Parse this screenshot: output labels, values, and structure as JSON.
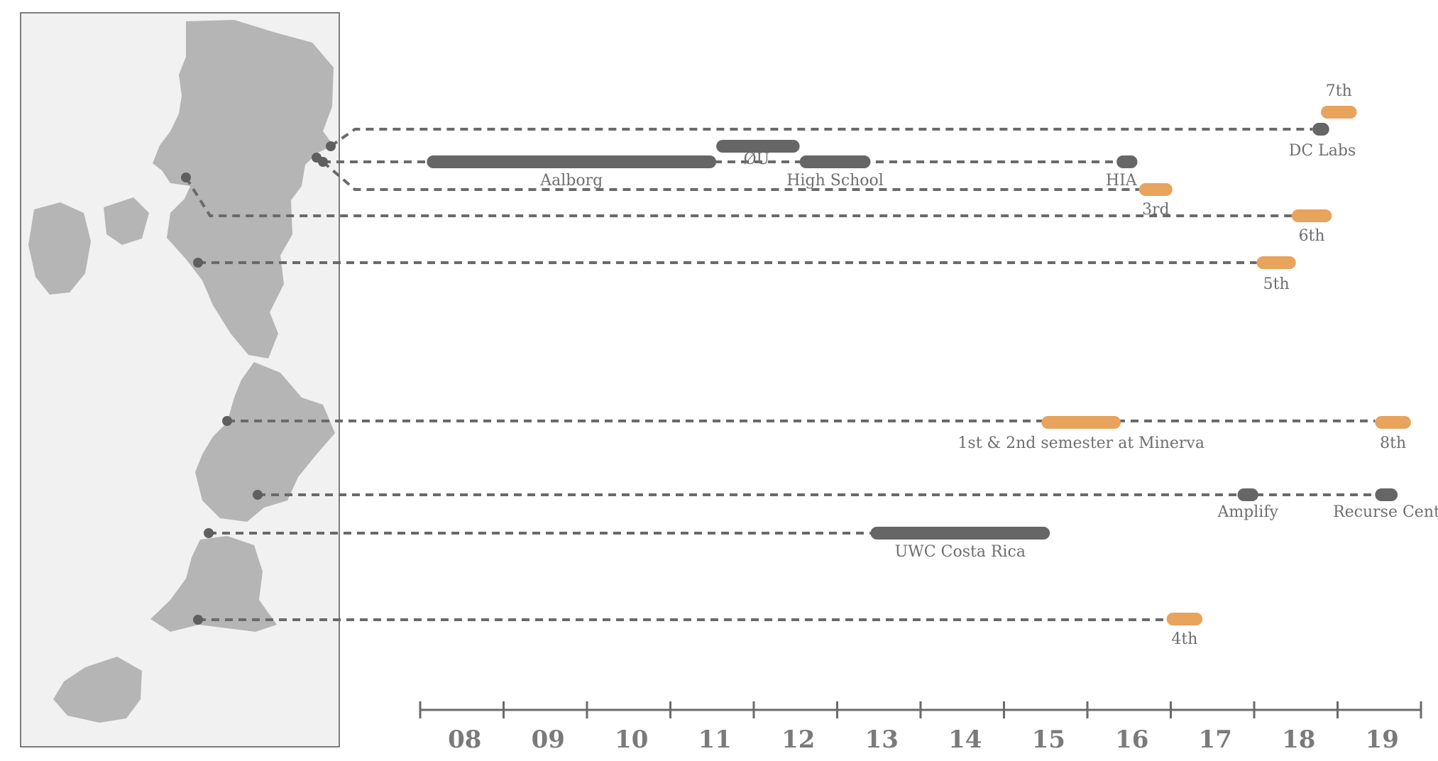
{
  "colors": {
    "work": "#666666",
    "school": "#e8a35c",
    "dot": "#5f5f5f"
  },
  "timeline": {
    "start": 2007.5,
    "end": 2019.5,
    "ticks": [
      "08",
      "09",
      "10",
      "11",
      "12",
      "13",
      "14",
      "15",
      "16",
      "17",
      "18",
      "19"
    ]
  },
  "items": [
    {
      "id": "aalborg",
      "label": "Aalborg",
      "start": 2007.58,
      "end": 2011.05,
      "kind": "work",
      "row": "denmark"
    },
    {
      "id": "ou",
      "label": "ØU",
      "start": 2011.05,
      "end": 2012.05,
      "kind": "work",
      "row": "ou"
    },
    {
      "id": "high-school",
      "label": "High School",
      "start": 2012.05,
      "end": 2012.9,
      "kind": "work",
      "row": "denmark"
    },
    {
      "id": "hia",
      "label": "HIA",
      "start": 2015.85,
      "end": 2016.1,
      "kind": "work",
      "row": "denmark"
    },
    {
      "id": "dc-labs",
      "label": "DC Labs",
      "start": 2018.2,
      "end": 2018.4,
      "kind": "work",
      "row": "dclabs"
    },
    {
      "id": "7th",
      "label": "7th",
      "start": 2018.3,
      "end": 2018.73,
      "kind": "school",
      "row": "seventh"
    },
    {
      "id": "3rd",
      "label": "3rd",
      "start": 2016.12,
      "end": 2016.52,
      "kind": "school",
      "row": "third"
    },
    {
      "id": "6th",
      "label": "6th",
      "start": 2017.95,
      "end": 2018.43,
      "kind": "school",
      "row": "sixth"
    },
    {
      "id": "5th",
      "label": "5th",
      "start": 2017.53,
      "end": 2018.0,
      "kind": "school",
      "row": "fifth"
    },
    {
      "id": "minerva",
      "label": "1st & 2nd semester at Minerva",
      "start": 2014.95,
      "end": 2015.9,
      "kind": "school",
      "row": "sf"
    },
    {
      "id": "8th",
      "label": "8th",
      "start": 2018.95,
      "end": 2019.38,
      "kind": "school",
      "row": "sf"
    },
    {
      "id": "amplify",
      "label": "Amplify",
      "start": 2017.3,
      "end": 2017.55,
      "kind": "work",
      "row": "nyc"
    },
    {
      "id": "recurse",
      "label": "Recurse Center",
      "start": 2018.95,
      "end": 2019.22,
      "kind": "work",
      "row": "nyc"
    },
    {
      "id": "uwc",
      "label": "UWC Costa Rica",
      "start": 2012.9,
      "end": 2015.05,
      "kind": "work",
      "row": "costarica"
    },
    {
      "id": "4th",
      "label": "4th",
      "start": 2016.45,
      "end": 2016.88,
      "kind": "school",
      "row": "fourth"
    }
  ]
}
